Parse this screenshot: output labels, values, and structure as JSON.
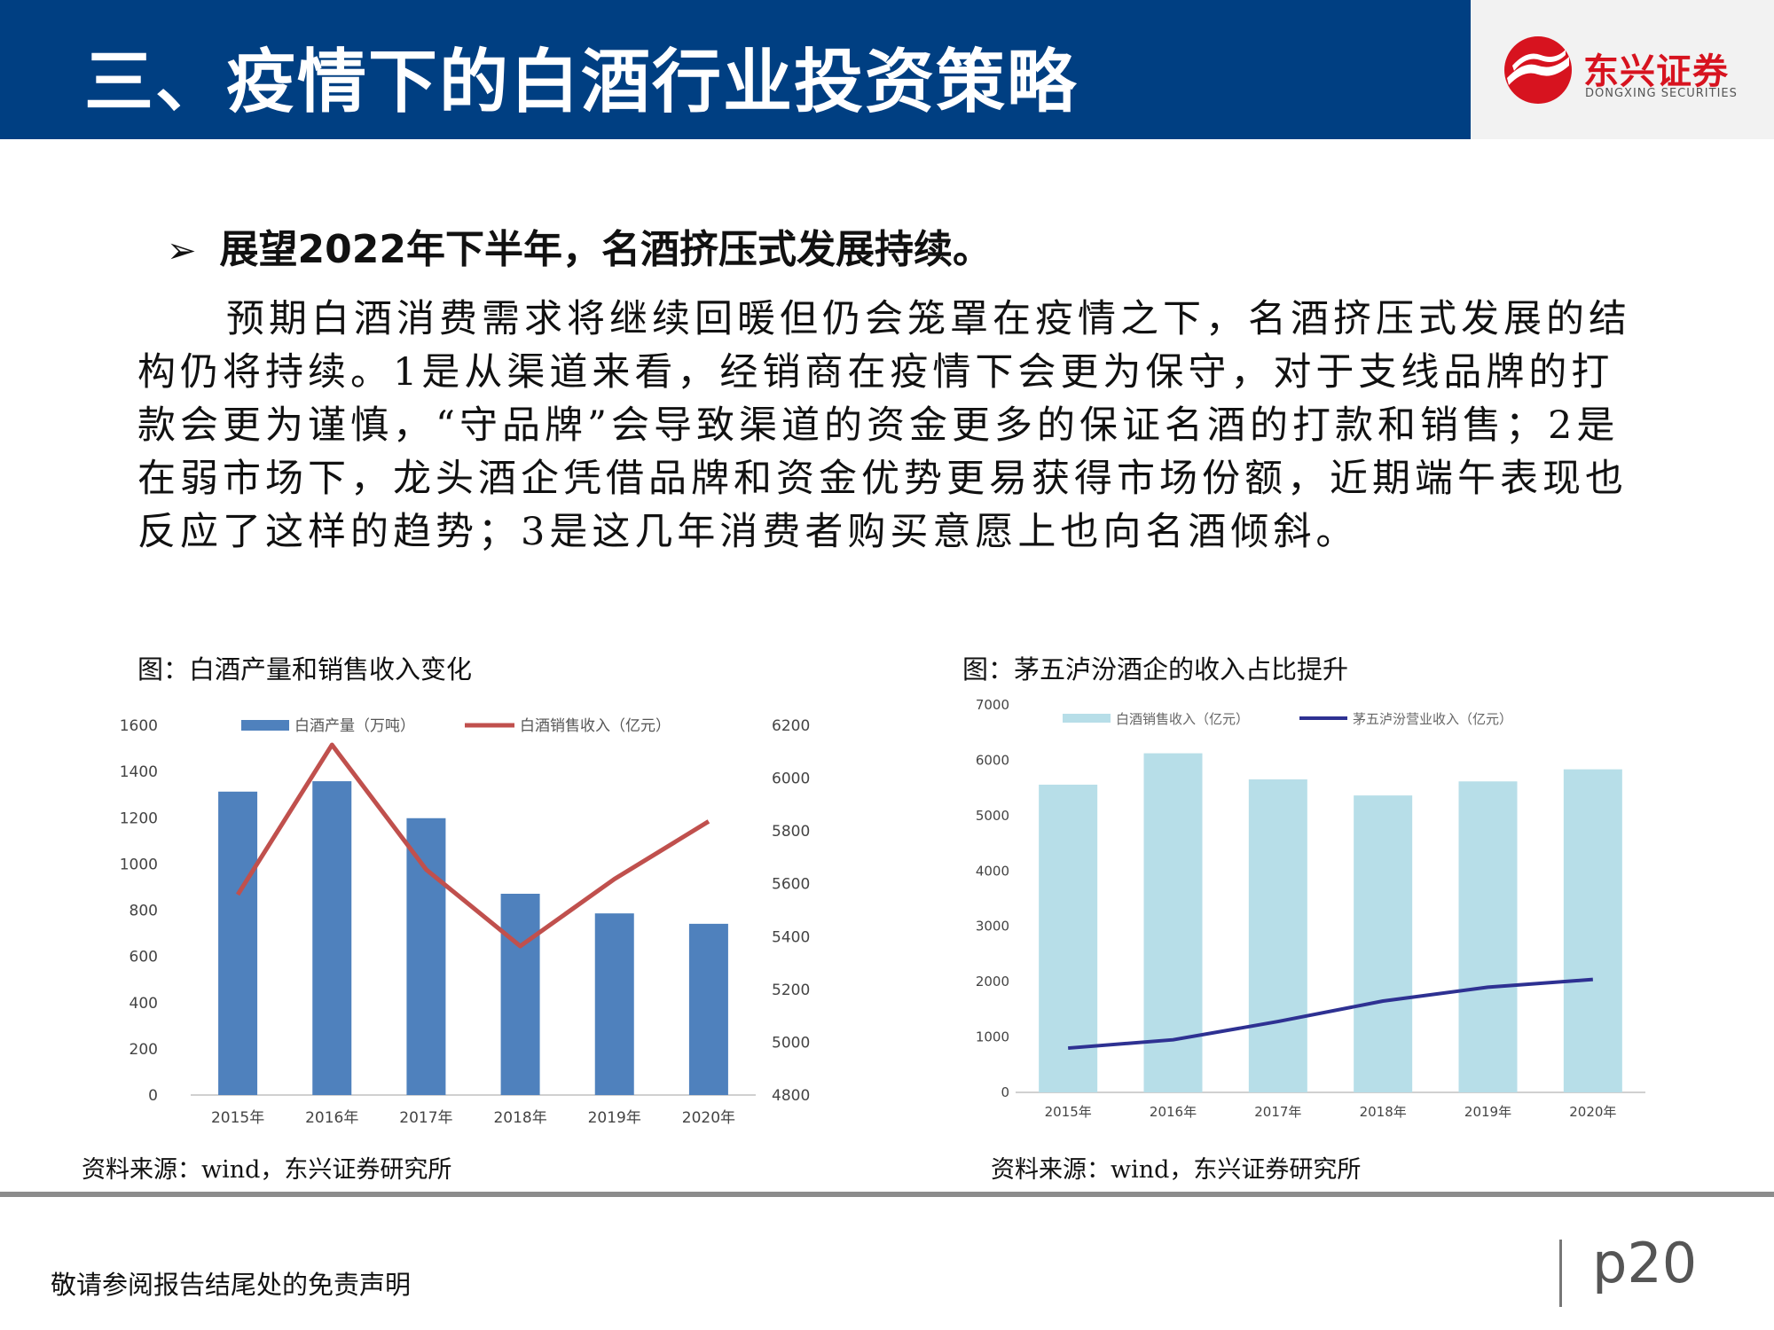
{
  "header": {
    "title": "三、疫情下的白酒行业投资策略"
  },
  "logo": {
    "name_cn": "东兴证券",
    "name_en": "DONGXING SECURITIES",
    "colors": {
      "red": "#d7131f"
    },
    "icon": "dongxing-logo-icon"
  },
  "content": {
    "bullet_icon": "arrow-bullet-icon",
    "bullet": "展望2022年下半年，名酒挤压式发展持续。",
    "paragraph": "预期白酒消费需求将继续回暖但仍会笼罩在疫情之下，名酒挤压式发展的结构仍将持续。1是从渠道来看，经销商在疫情下会更为保守，对于支线品牌的打款会更为谨慎，“守品牌”会导致渠道的资金更多的保证名酒的打款和销售；2是在弱市场下，龙头酒企凭借品牌和资金优势更易获得市场份额，近期端午表现也反应了这样的趋势；3是这几年消费者购买意愿上也向名酒倾斜。"
  },
  "chart1": {
    "caption": "图：白酒产量和销售收入变化",
    "source": "资料来源：wind，东兴证券研究所"
  },
  "chart2": {
    "caption": "图：茅五泸汾酒企的收入占比提升",
    "source": "资料来源：wind，东兴证券研究所"
  },
  "footer": {
    "disclaimer": "敬请参阅报告结尾处的免责声明",
    "page": "p20"
  },
  "colors": {
    "header_bg": "#003f82",
    "bar1": "#4f81bd",
    "line1": "#c0504d",
    "bar2": "#b7dee8",
    "line2": "#2e3192"
  },
  "chart_data": [
    {
      "type": "bar",
      "categories": [
        "2015年",
        "2016年",
        "2017年",
        "2018年",
        "2019年",
        "2020年"
      ],
      "series": [
        {
          "name": "白酒产量（万吨）",
          "type": "bar",
          "axis": "left",
          "values": [
            1313,
            1358,
            1198,
            871,
            786,
            741
          ]
        },
        {
          "name": "白酒销售收入（亿元）",
          "type": "line",
          "axis": "right",
          "values": [
            5559,
            6126,
            5654,
            5364,
            5618,
            5836
          ]
        }
      ],
      "y_left": {
        "min": 0,
        "max": 1600,
        "ticks": [
          0,
          200,
          400,
          600,
          800,
          1000,
          1200,
          1400,
          1600
        ]
      },
      "y_right": {
        "min": 4800,
        "max": 6200,
        "ticks": [
          4800,
          5000,
          5200,
          5400,
          5600,
          5800,
          6000,
          6200
        ]
      },
      "legend": "top",
      "grid": false
    },
    {
      "type": "bar",
      "categories": [
        "2015年",
        "2016年",
        "2017年",
        "2018年",
        "2019年",
        "2020年"
      ],
      "series": [
        {
          "name": "白酒销售收入（亿元）",
          "type": "bar",
          "values": [
            5559,
            6126,
            5654,
            5364,
            5618,
            5836
          ]
        },
        {
          "name": "茅五泸汾营业收入（亿元）",
          "type": "line",
          "values": [
            800,
            950,
            1280,
            1650,
            1900,
            2040
          ]
        }
      ],
      "y": {
        "min": 0,
        "max": 7000,
        "ticks": [
          0,
          1000,
          2000,
          3000,
          4000,
          5000,
          6000,
          7000
        ]
      },
      "legend": "top",
      "grid": false
    }
  ]
}
